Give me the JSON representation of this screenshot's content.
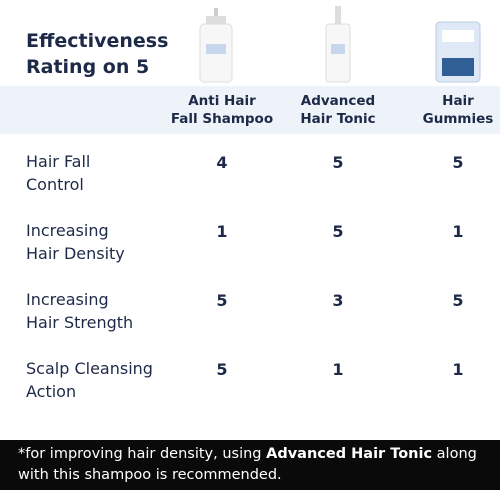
{
  "title": [
    "Effectiveness",
    "Rating on 5"
  ],
  "columns": [
    [
      "Anti Hair",
      "Fall Shampoo"
    ],
    [
      "Advanced",
      "Hair Tonic"
    ],
    [
      "Hair",
      "Gummies"
    ]
  ],
  "rows": [
    {
      "label": [
        "Hair Fall",
        "Control"
      ],
      "ratings": [
        4,
        5,
        5
      ]
    },
    {
      "label": [
        "Increasing",
        "Hair Density"
      ],
      "ratings": [
        1,
        5,
        1
      ]
    },
    {
      "label": [
        "Increasing",
        "Hair Strength"
      ],
      "ratings": [
        5,
        3,
        5
      ]
    },
    {
      "label": [
        "Scalp Cleansing",
        "Action"
      ],
      "ratings": [
        5,
        1,
        1
      ]
    }
  ],
  "footnote": {
    "before": "*for improving hair density, using ",
    "bold": "Advanced Hair Tonic",
    "after": " along with this shampoo is recommended."
  }
}
